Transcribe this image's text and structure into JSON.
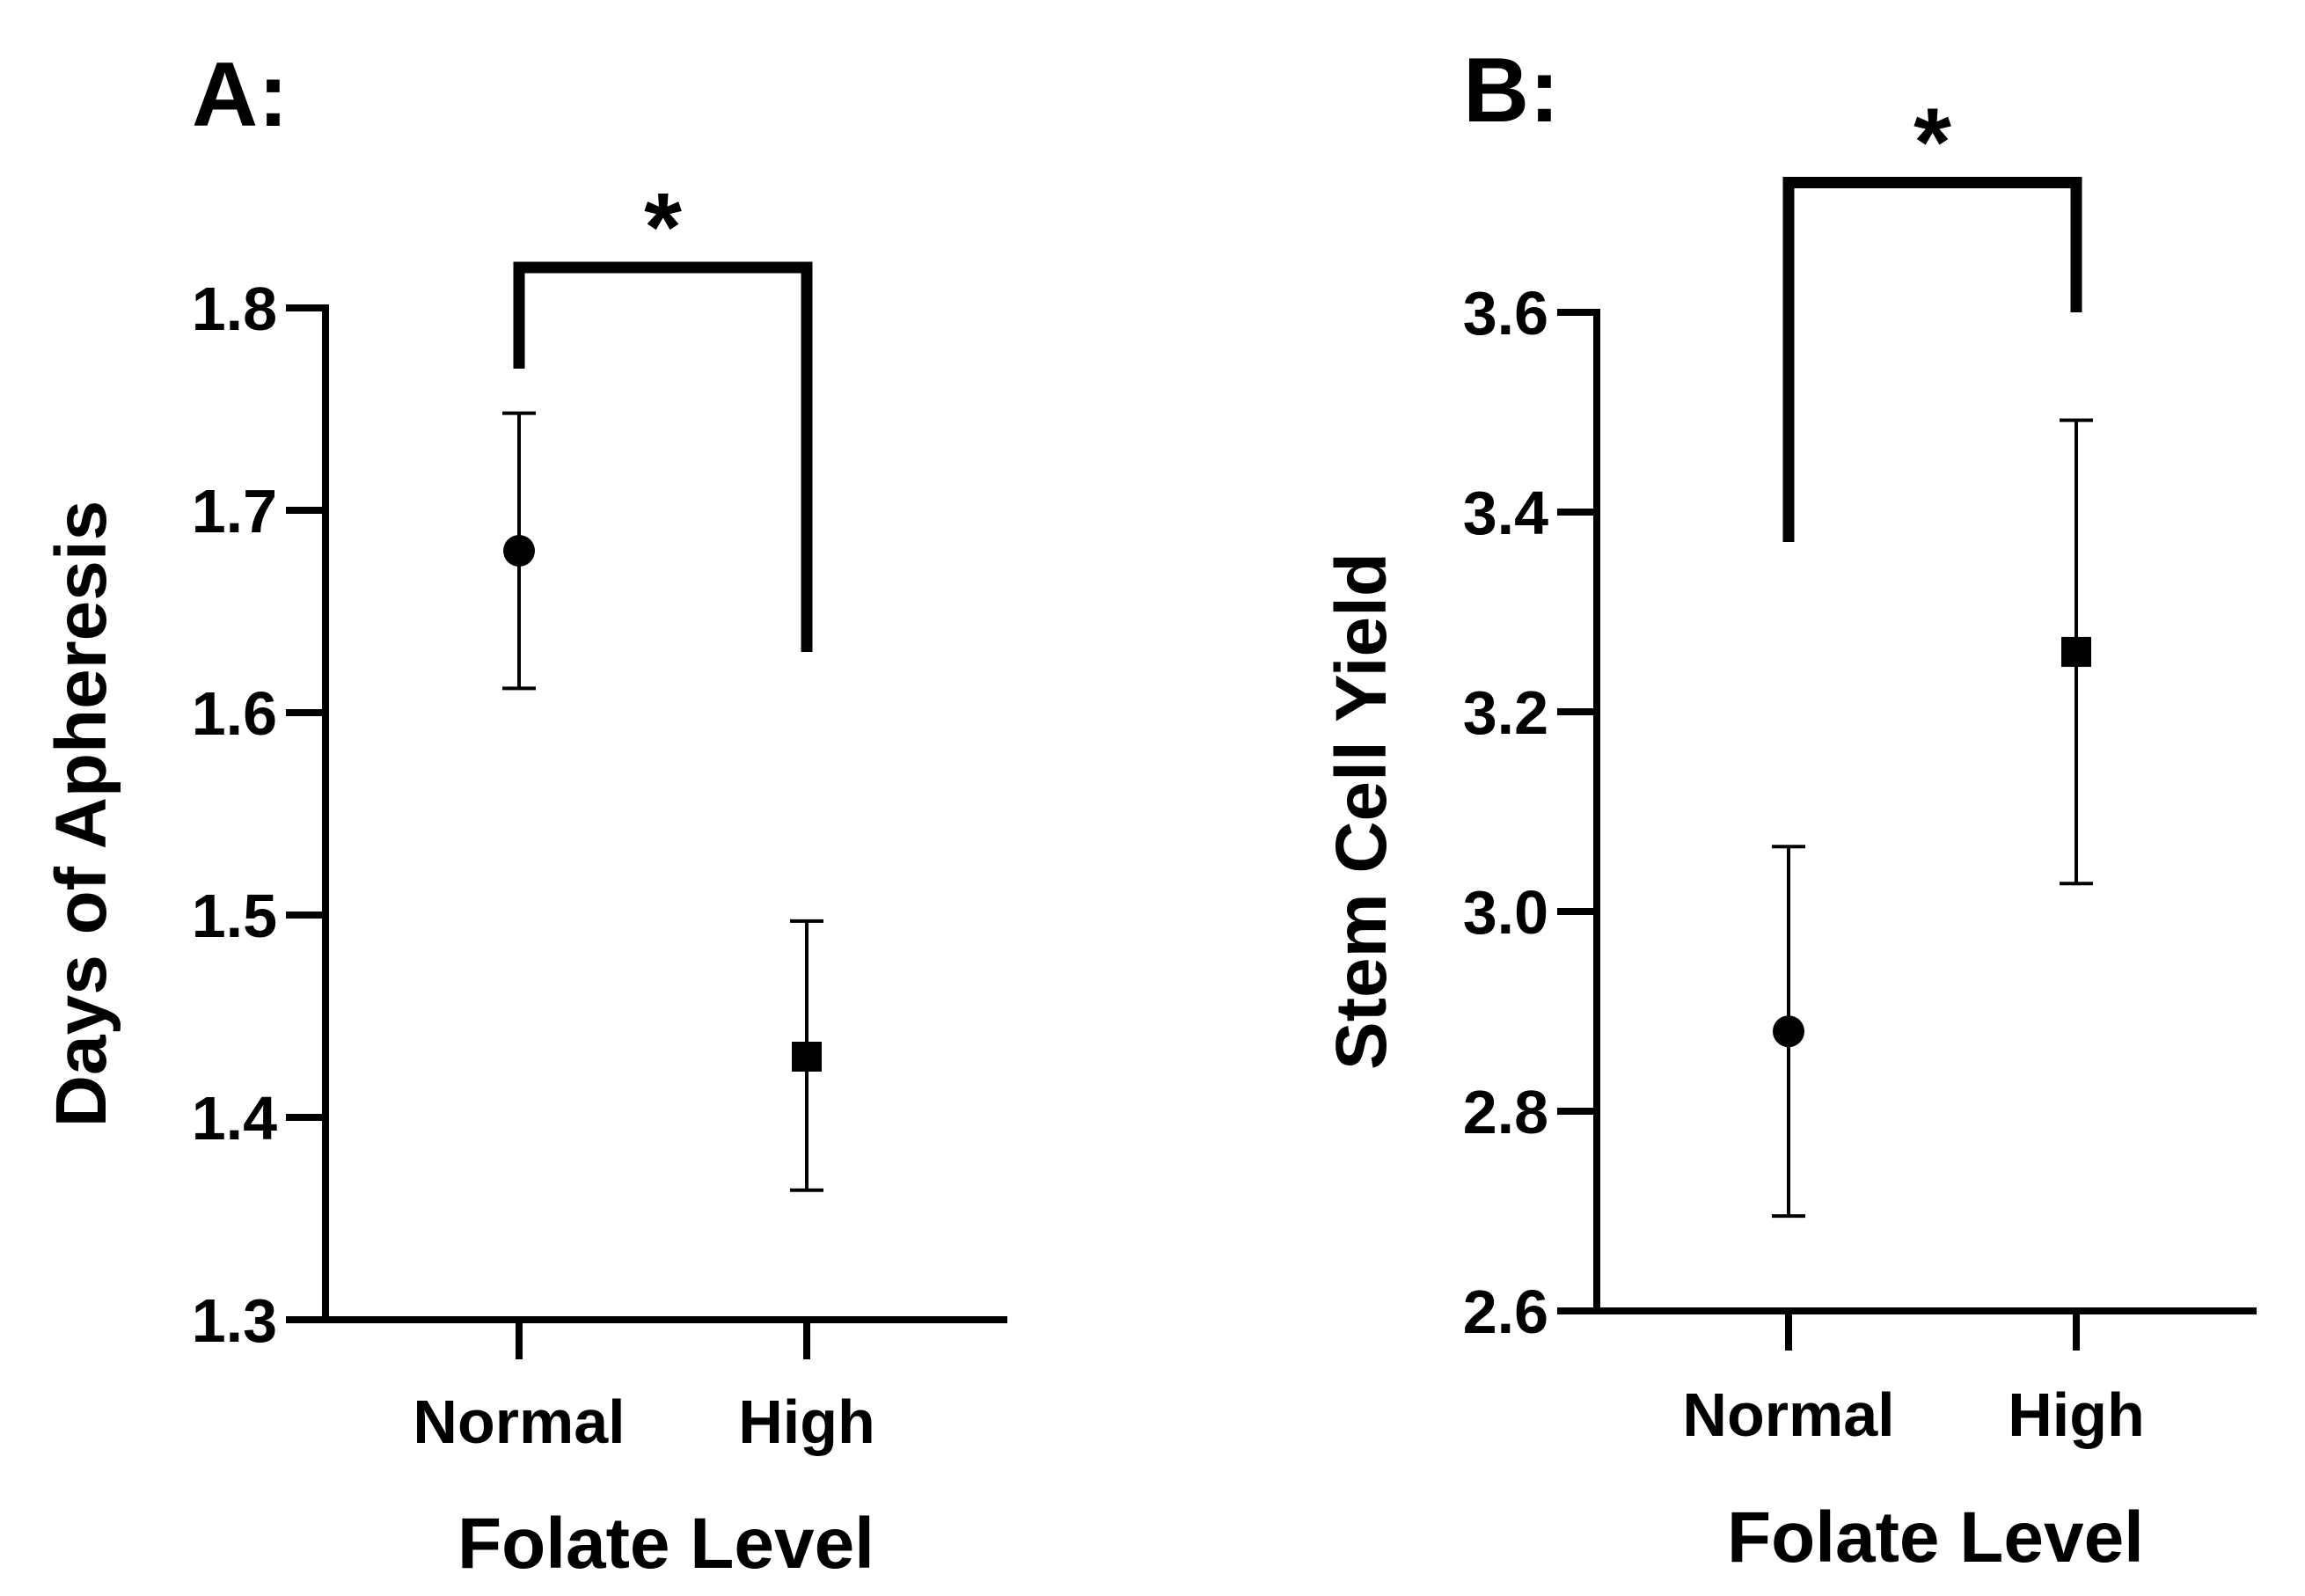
{
  "chart_data": [
    {
      "type": "scatter",
      "panel_label": "A:",
      "title": "",
      "xlabel": "Folate Level",
      "ylabel": "Days of Apheresis",
      "categories": [
        "Normal",
        "High"
      ],
      "series": [
        {
          "name": "Normal",
          "category": "Normal",
          "marker": "circle",
          "value": 1.68,
          "err_low": 1.612,
          "err_high": 1.748
        },
        {
          "name": "High",
          "category": "High",
          "marker": "square",
          "value": 1.43,
          "err_low": 1.364,
          "err_high": 1.497
        }
      ],
      "ylim": [
        1.3,
        1.8
      ],
      "yticks": [
        1.3,
        1.4,
        1.5,
        1.6,
        1.7,
        1.8
      ],
      "ytick_labels": [
        "1.3",
        "1.4",
        "1.5",
        "1.6",
        "1.7",
        "1.8"
      ],
      "significance": {
        "label": "*",
        "left_end": 1.77,
        "right_end": 1.63,
        "top": 1.82
      },
      "grid": false
    },
    {
      "type": "scatter",
      "panel_label": "B:",
      "title": "",
      "xlabel": "Folate Level",
      "ylabel": "Stem Cell Yield",
      "categories": [
        "Normal",
        "High"
      ],
      "series": [
        {
          "name": "Normal",
          "category": "Normal",
          "marker": "circle",
          "value": 2.88,
          "err_low": 2.695,
          "err_high": 3.065
        },
        {
          "name": "High",
          "category": "High",
          "marker": "square",
          "value": 3.26,
          "err_low": 3.028,
          "err_high": 3.492
        }
      ],
      "ylim": [
        2.6,
        3.6
      ],
      "yticks": [
        2.6,
        2.8,
        3.0,
        3.2,
        3.4,
        3.6
      ],
      "ytick_labels": [
        "2.6",
        "2.8",
        "3.0",
        "3.2",
        "3.4",
        "3.6"
      ],
      "significance": {
        "label": "*",
        "left_end": 3.37,
        "right_end": 3.6,
        "top": 3.73
      },
      "grid": false
    }
  ]
}
